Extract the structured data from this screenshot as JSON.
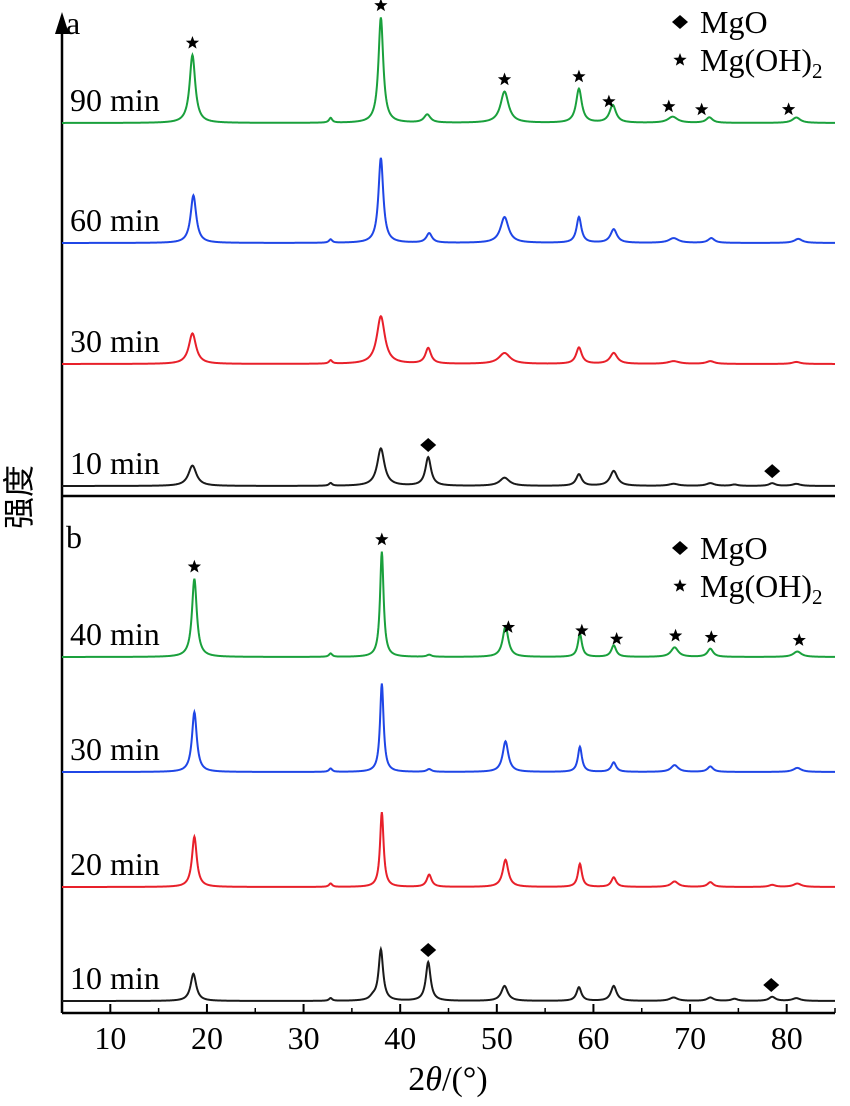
{
  "chart_data": {
    "type": "line",
    "ylabel": "强度",
    "xlabel_prefix": "2",
    "xlabel_theta": "θ",
    "xlabel_suffix": "/(°)",
    "xlim": [
      5,
      85
    ],
    "xticks": [
      10,
      20,
      30,
      40,
      50,
      60,
      70,
      80
    ],
    "grid": false,
    "legend": {
      "placement": "top-right",
      "entries": [
        {
          "marker": "diamond",
          "text": "MgO",
          "sub": ""
        },
        {
          "marker": "star",
          "text": "Mg(OH)",
          "sub": "2"
        }
      ]
    },
    "panels": [
      {
        "label": "a",
        "series": [
          {
            "name": "90 min",
            "color": "#1aa03c",
            "peaks": [
              [
                18.5,
                1.0,
                0.35
              ],
              [
                32.8,
                0.07,
                0.2
              ],
              [
                38.0,
                1.55,
                0.3
              ],
              [
                42.8,
                0.12,
                0.4
              ],
              [
                50.8,
                0.46,
                0.5
              ],
              [
                58.5,
                0.5,
                0.35
              ],
              [
                62.0,
                0.26,
                0.4
              ],
              [
                68.2,
                0.09,
                0.6
              ],
              [
                72.0,
                0.08,
                0.4
              ],
              [
                81.0,
                0.08,
                0.5
              ]
            ],
            "markers": [
              {
                "x": 18.5,
                "type": "star"
              },
              {
                "x": 38.0,
                "type": "star"
              },
              {
                "x": 50.8,
                "type": "star"
              },
              {
                "x": 58.5,
                "type": "star"
              },
              {
                "x": 61.6,
                "type": "star"
              },
              {
                "x": 67.8,
                "type": "star"
              },
              {
                "x": 71.2,
                "type": "star"
              },
              {
                "x": 80.2,
                "type": "star"
              }
            ]
          },
          {
            "name": "60 min",
            "color": "#1f46e6",
            "peaks": [
              [
                18.6,
                0.7,
                0.35
              ],
              [
                32.8,
                0.05,
                0.2
              ],
              [
                38.0,
                1.25,
                0.3
              ],
              [
                43.0,
                0.14,
                0.35
              ],
              [
                50.8,
                0.38,
                0.5
              ],
              [
                58.5,
                0.38,
                0.3
              ],
              [
                62.1,
                0.2,
                0.4
              ],
              [
                68.3,
                0.07,
                0.6
              ],
              [
                72.2,
                0.07,
                0.4
              ],
              [
                81.2,
                0.06,
                0.5
              ]
            ],
            "markers": []
          },
          {
            "name": "30 min",
            "color": "#e8202a",
            "peaks": [
              [
                18.5,
                0.45,
                0.45
              ],
              [
                32.8,
                0.05,
                0.2
              ],
              [
                38.0,
                0.7,
                0.5
              ],
              [
                42.9,
                0.23,
                0.35
              ],
              [
                50.8,
                0.16,
                0.7
              ],
              [
                58.5,
                0.24,
                0.35
              ],
              [
                62.1,
                0.16,
                0.45
              ],
              [
                68.3,
                0.04,
                0.7
              ],
              [
                72.1,
                0.04,
                0.5
              ],
              [
                81.0,
                0.03,
                0.5
              ]
            ],
            "markers": []
          },
          {
            "name": "10 min",
            "color": "#1a1a1a",
            "peaks": [
              [
                18.5,
                0.3,
                0.5
              ],
              [
                32.8,
                0.04,
                0.2
              ],
              [
                38.0,
                0.55,
                0.45
              ],
              [
                42.9,
                0.42,
                0.35
              ],
              [
                50.8,
                0.12,
                0.6
              ],
              [
                58.5,
                0.17,
                0.35
              ],
              [
                62.1,
                0.22,
                0.45
              ],
              [
                68.3,
                0.03,
                0.6
              ],
              [
                72.1,
                0.04,
                0.5
              ],
              [
                74.6,
                0.02,
                0.4
              ],
              [
                78.5,
                0.04,
                0.4
              ],
              [
                81.0,
                0.03,
                0.5
              ]
            ],
            "markers": [
              {
                "x": 42.9,
                "type": "diamond"
              },
              {
                "x": 78.5,
                "type": "diamond"
              }
            ]
          }
        ]
      },
      {
        "label": "b",
        "series": [
          {
            "name": "40 min",
            "color": "#1aa03c",
            "peaks": [
              [
                18.7,
                1.15,
                0.3
              ],
              [
                32.8,
                0.05,
                0.2
              ],
              [
                38.1,
                1.55,
                0.22
              ],
              [
                43.0,
                0.03,
                0.3
              ],
              [
                50.9,
                0.45,
                0.35
              ],
              [
                58.6,
                0.34,
                0.25
              ],
              [
                62.1,
                0.17,
                0.3
              ],
              [
                68.4,
                0.14,
                0.45
              ],
              [
                72.1,
                0.12,
                0.35
              ],
              [
                81.1,
                0.08,
                0.5
              ]
            ],
            "markers": [
              {
                "x": 18.7,
                "type": "star"
              },
              {
                "x": 38.1,
                "type": "star"
              },
              {
                "x": 51.2,
                "type": "star"
              },
              {
                "x": 58.8,
                "type": "star"
              },
              {
                "x": 62.4,
                "type": "star"
              },
              {
                "x": 68.5,
                "type": "star"
              },
              {
                "x": 72.2,
                "type": "star"
              },
              {
                "x": 81.3,
                "type": "star"
              }
            ]
          },
          {
            "name": "30 min",
            "color": "#1f46e6",
            "peaks": [
              [
                18.7,
                0.88,
                0.3
              ],
              [
                32.8,
                0.05,
                0.2
              ],
              [
                38.1,
                1.3,
                0.22
              ],
              [
                43.0,
                0.04,
                0.3
              ],
              [
                50.9,
                0.45,
                0.35
              ],
              [
                58.6,
                0.37,
                0.25
              ],
              [
                62.1,
                0.14,
                0.3
              ],
              [
                68.4,
                0.1,
                0.45
              ],
              [
                72.1,
                0.08,
                0.35
              ],
              [
                81.1,
                0.06,
                0.5
              ]
            ],
            "markers": []
          },
          {
            "name": "20 min",
            "color": "#e8202a",
            "peaks": [
              [
                18.7,
                0.74,
                0.3
              ],
              [
                32.8,
                0.05,
                0.2
              ],
              [
                38.1,
                1.1,
                0.22
              ],
              [
                43.0,
                0.18,
                0.3
              ],
              [
                50.9,
                0.4,
                0.35
              ],
              [
                58.6,
                0.34,
                0.25
              ],
              [
                62.1,
                0.14,
                0.3
              ],
              [
                68.4,
                0.08,
                0.45
              ],
              [
                72.1,
                0.07,
                0.35
              ],
              [
                78.5,
                0.03,
                0.4
              ],
              [
                81.1,
                0.05,
                0.5
              ]
            ],
            "markers": []
          },
          {
            "name": "10 min",
            "color": "#1a1a1a",
            "peaks": [
              [
                18.6,
                0.4,
                0.35
              ],
              [
                32.8,
                0.04,
                0.2
              ],
              [
                37.2,
                0.05,
                0.4
              ],
              [
                38.0,
                0.75,
                0.28
              ],
              [
                42.9,
                0.57,
                0.3
              ],
              [
                50.8,
                0.22,
                0.4
              ],
              [
                58.5,
                0.2,
                0.3
              ],
              [
                62.1,
                0.22,
                0.35
              ],
              [
                68.3,
                0.05,
                0.5
              ],
              [
                72.1,
                0.05,
                0.4
              ],
              [
                74.6,
                0.03,
                0.4
              ],
              [
                78.5,
                0.06,
                0.4
              ],
              [
                81.0,
                0.04,
                0.5
              ]
            ],
            "markers": [
              {
                "x": 42.9,
                "type": "diamond"
              },
              {
                "x": 78.4,
                "type": "diamond"
              }
            ]
          }
        ]
      }
    ]
  }
}
